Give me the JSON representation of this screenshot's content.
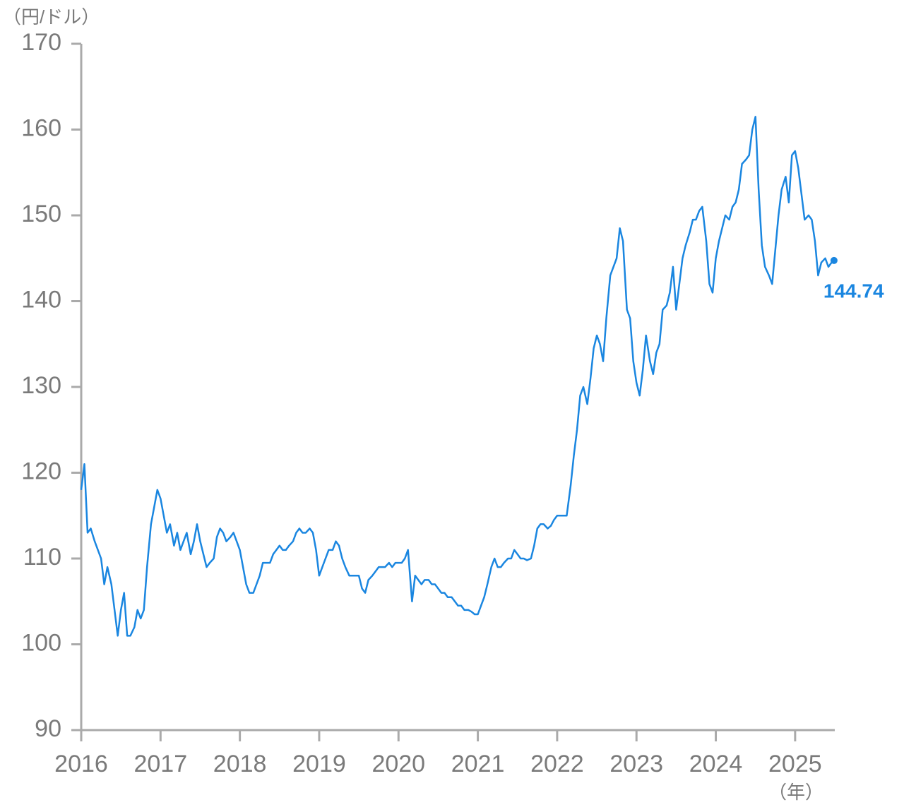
{
  "chart_data": {
    "type": "line",
    "y_axis_label": "（円/ドル）",
    "x_axis_label": "（年）",
    "end_label": "144.74",
    "xlim": [
      2016,
      2025.5
    ],
    "xticks": [
      2016,
      2017,
      2018,
      2019,
      2020,
      2021,
      2022,
      2023,
      2024,
      2025
    ],
    "ylim": [
      90,
      170
    ],
    "yticks": [
      90,
      100,
      110,
      120,
      130,
      140,
      150,
      160,
      170
    ],
    "series": [
      {
        "color": "#1a86e0",
        "x": [
          2016.0,
          2016.04,
          2016.08,
          2016.12,
          2016.17,
          2016.25,
          2016.29,
          2016.33,
          2016.38,
          2016.42,
          2016.46,
          2016.5,
          2016.54,
          2016.58,
          2016.62,
          2016.67,
          2016.71,
          2016.75,
          2016.79,
          2016.83,
          2016.88,
          2016.92,
          2016.96,
          2017.0,
          2017.04,
          2017.08,
          2017.12,
          2017.17,
          2017.21,
          2017.25,
          2017.29,
          2017.33,
          2017.38,
          2017.42,
          2017.46,
          2017.5,
          2017.54,
          2017.58,
          2017.62,
          2017.67,
          2017.71,
          2017.75,
          2017.79,
          2017.83,
          2017.88,
          2017.92,
          2017.96,
          2018.0,
          2018.04,
          2018.08,
          2018.12,
          2018.17,
          2018.21,
          2018.25,
          2018.29,
          2018.33,
          2018.38,
          2018.42,
          2018.46,
          2018.5,
          2018.54,
          2018.58,
          2018.62,
          2018.67,
          2018.71,
          2018.75,
          2018.79,
          2018.83,
          2018.88,
          2018.92,
          2018.96,
          2019.0,
          2019.04,
          2019.08,
          2019.12,
          2019.17,
          2019.21,
          2019.25,
          2019.29,
          2019.33,
          2019.38,
          2019.42,
          2019.46,
          2019.5,
          2019.54,
          2019.58,
          2019.62,
          2019.67,
          2019.71,
          2019.75,
          2019.79,
          2019.83,
          2019.88,
          2019.92,
          2019.96,
          2020.0,
          2020.04,
          2020.08,
          2020.12,
          2020.17,
          2020.21,
          2020.25,
          2020.29,
          2020.33,
          2020.38,
          2020.42,
          2020.46,
          2020.5,
          2020.54,
          2020.58,
          2020.62,
          2020.67,
          2020.71,
          2020.75,
          2020.79,
          2020.83,
          2020.88,
          2020.92,
          2020.96,
          2021.0,
          2021.04,
          2021.08,
          2021.12,
          2021.17,
          2021.21,
          2021.25,
          2021.29,
          2021.33,
          2021.38,
          2021.42,
          2021.46,
          2021.5,
          2021.54,
          2021.58,
          2021.62,
          2021.67,
          2021.71,
          2021.75,
          2021.79,
          2021.83,
          2021.88,
          2021.92,
          2021.96,
          2022.0,
          2022.04,
          2022.08,
          2022.12,
          2022.17,
          2022.21,
          2022.25,
          2022.29,
          2022.33,
          2022.38,
          2022.42,
          2022.46,
          2022.5,
          2022.54,
          2022.58,
          2022.62,
          2022.67,
          2022.71,
          2022.75,
          2022.79,
          2022.83,
          2022.88,
          2022.92,
          2022.96,
          2023.0,
          2023.04,
          2023.08,
          2023.12,
          2023.17,
          2023.21,
          2023.25,
          2023.29,
          2023.33,
          2023.38,
          2023.42,
          2023.46,
          2023.5,
          2023.54,
          2023.58,
          2023.62,
          2023.67,
          2023.71,
          2023.75,
          2023.79,
          2023.83,
          2023.88,
          2023.92,
          2023.96,
          2024.0,
          2024.04,
          2024.08,
          2024.12,
          2024.17,
          2024.21,
          2024.25,
          2024.29,
          2024.33,
          2024.38,
          2024.42,
          2024.46,
          2024.5,
          2024.54,
          2024.58,
          2024.62,
          2024.67,
          2024.71,
          2024.75,
          2024.79,
          2024.83,
          2024.88,
          2024.92,
          2024.96,
          2025.0,
          2025.04,
          2025.08,
          2025.12,
          2025.17,
          2025.21,
          2025.25,
          2025.29,
          2025.33,
          2025.38,
          2025.42,
          2025.46,
          2025.49
        ],
        "values": [
          118,
          121,
          113,
          113.5,
          112,
          110,
          107,
          109,
          107,
          104,
          101,
          104,
          106,
          101,
          101,
          102,
          104,
          103,
          104,
          109,
          114,
          116,
          118,
          117,
          115,
          113,
          114,
          111.5,
          113,
          111,
          112,
          113,
          110.5,
          112,
          114,
          112,
          110.5,
          109,
          109.5,
          110,
          112.5,
          113.5,
          113,
          112,
          112.5,
          113,
          112,
          111,
          109,
          107,
          106,
          106,
          107,
          108,
          109.5,
          109.5,
          109.5,
          110.5,
          111,
          111.5,
          111,
          111,
          111.5,
          112,
          113,
          113.5,
          113,
          113,
          113.5,
          113,
          111,
          108,
          109,
          110,
          111,
          111,
          112,
          111.5,
          110,
          109,
          108,
          108,
          108,
          108,
          106.5,
          106,
          107.5,
          108,
          108.5,
          109,
          109,
          109,
          109.5,
          109,
          109.5,
          109.5,
          109.5,
          110,
          111,
          105,
          108,
          107.5,
          107,
          107.5,
          107.5,
          107,
          107,
          106.5,
          106,
          106,
          105.5,
          105.5,
          105,
          104.5,
          104.5,
          104,
          104,
          103.8,
          103.5,
          103.5,
          104.5,
          105.5,
          107,
          109,
          110,
          109,
          109,
          109.5,
          110,
          110,
          111,
          110.5,
          110,
          110,
          109.8,
          110,
          111.5,
          113.5,
          114,
          114,
          113.5,
          113.8,
          114.5,
          115,
          115,
          115,
          115,
          118.5,
          122,
          125,
          129,
          130,
          128,
          131,
          134.5,
          136,
          135,
          133,
          138,
          143,
          144,
          145,
          148.5,
          147,
          139,
          138,
          133,
          130.5,
          129,
          132,
          136,
          133,
          131.5,
          134,
          135,
          139,
          139.5,
          141,
          144,
          139,
          142,
          145,
          146.5,
          148,
          149.5,
          149.5,
          150.5,
          151,
          147,
          142,
          141,
          145,
          147,
          148.5,
          150,
          149.5,
          151,
          151.5,
          153,
          156,
          156.5,
          157,
          160,
          161.5,
          153,
          146.5,
          144,
          143,
          142,
          146,
          150,
          153,
          154.5,
          151.5,
          157,
          157.5,
          155.5,
          152.5,
          149.5,
          150,
          149.5,
          147,
          143,
          144.5,
          145,
          144,
          144.5,
          144.74
        ]
      }
    ]
  }
}
